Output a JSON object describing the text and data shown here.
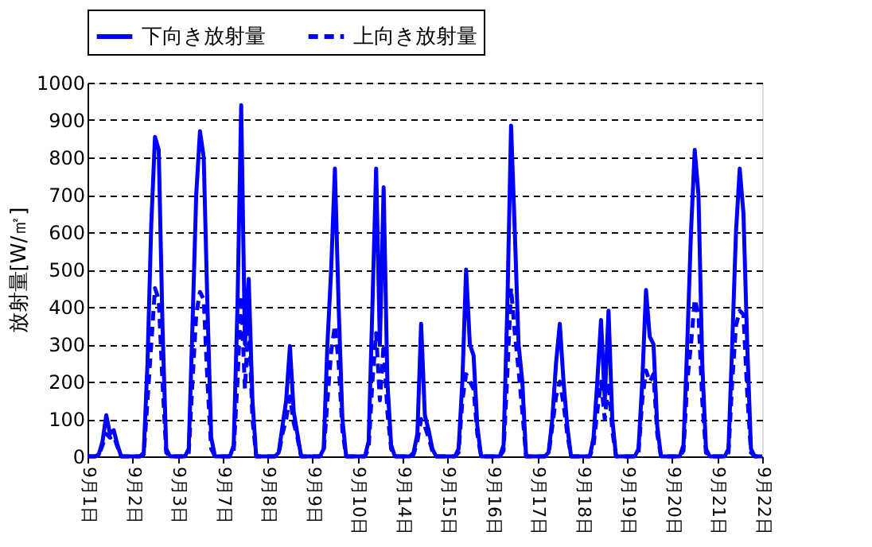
{
  "chart_data": {
    "type": "line",
    "ylabel": "放射量[W/㎡]",
    "categories": [
      "9月1日",
      null,
      null,
      null,
      null,
      null,
      null,
      null,
      null,
      null,
      null,
      null,
      "9月2日",
      null,
      null,
      null,
      null,
      null,
      null,
      null,
      null,
      null,
      null,
      null,
      "9月3日",
      null,
      null,
      null,
      null,
      null,
      null,
      null,
      null,
      null,
      null,
      null,
      "9月7日",
      null,
      null,
      null,
      null,
      null,
      null,
      null,
      null,
      null,
      null,
      null,
      "9月8日",
      null,
      null,
      null,
      null,
      null,
      null,
      null,
      null,
      null,
      null,
      null,
      "9月9日",
      null,
      null,
      null,
      null,
      null,
      null,
      null,
      null,
      null,
      null,
      null,
      "9月10日",
      null,
      null,
      null,
      null,
      null,
      null,
      null,
      null,
      null,
      null,
      null,
      "9月14日",
      null,
      null,
      null,
      null,
      null,
      null,
      null,
      null,
      null,
      null,
      null,
      "9月15日",
      null,
      null,
      null,
      null,
      null,
      null,
      null,
      null,
      null,
      null,
      null,
      "9月16日",
      null,
      null,
      null,
      null,
      null,
      null,
      null,
      null,
      null,
      null,
      null,
      "9月17日",
      null,
      null,
      null,
      null,
      null,
      null,
      null,
      null,
      null,
      null,
      null,
      "9月18日",
      null,
      null,
      null,
      null,
      null,
      null,
      null,
      null,
      null,
      null,
      null,
      "9月19日",
      null,
      null,
      null,
      null,
      null,
      null,
      null,
      null,
      null,
      null,
      null,
      "9月20日",
      null,
      null,
      null,
      null,
      null,
      null,
      null,
      null,
      null,
      null,
      null,
      "9月21日",
      null,
      null,
      null,
      null,
      null,
      null,
      null,
      null,
      null,
      null,
      null,
      "9月22日"
    ],
    "series": [
      {
        "name": "下向き放射量",
        "color": "#0000ff",
        "line_style": "solid",
        "values": [
          0,
          0,
          0,
          5,
          40,
          110,
          60,
          70,
          30,
          0,
          0,
          0,
          0,
          0,
          0,
          10,
          250,
          620,
          855,
          820,
          350,
          20,
          0,
          0,
          0,
          0,
          0,
          20,
          350,
          700,
          870,
          800,
          400,
          50,
          0,
          0,
          0,
          0,
          0,
          30,
          400,
          940,
          300,
          475,
          150,
          0,
          0,
          0,
          0,
          0,
          0,
          10,
          80,
          150,
          295,
          120,
          60,
          0,
          0,
          0,
          0,
          0,
          0,
          20,
          300,
          500,
          770,
          400,
          100,
          0,
          0,
          0,
          0,
          0,
          0,
          40,
          400,
          770,
          300,
          720,
          200,
          30,
          0,
          0,
          0,
          0,
          0,
          10,
          60,
          355,
          110,
          70,
          20,
          0,
          0,
          0,
          0,
          0,
          0,
          20,
          200,
          500,
          300,
          270,
          80,
          0,
          0,
          0,
          0,
          0,
          0,
          30,
          400,
          885,
          600,
          300,
          200,
          0,
          0,
          0,
          0,
          0,
          0,
          10,
          100,
          250,
          355,
          200,
          80,
          0,
          0,
          0,
          0,
          0,
          0,
          50,
          200,
          365,
          150,
          390,
          100,
          0,
          0,
          0,
          0,
          0,
          0,
          20,
          200,
          445,
          320,
          300,
          80,
          0,
          0,
          0,
          0,
          0,
          0,
          30,
          300,
          600,
          820,
          700,
          250,
          20,
          0,
          0,
          0,
          0,
          0,
          20,
          300,
          600,
          770,
          650,
          300,
          20,
          0,
          0,
          0
        ]
      },
      {
        "name": "上向き放射量",
        "color": "#0000ff",
        "line_style": "dashed",
        "values": [
          0,
          0,
          0,
          3,
          30,
          60,
          50,
          55,
          25,
          0,
          0,
          0,
          0,
          0,
          0,
          5,
          150,
          300,
          450,
          420,
          200,
          10,
          0,
          0,
          0,
          0,
          0,
          10,
          200,
          380,
          440,
          420,
          200,
          20,
          0,
          0,
          0,
          0,
          0,
          15,
          200,
          430,
          180,
          380,
          100,
          0,
          0,
          0,
          0,
          0,
          0,
          5,
          60,
          100,
          160,
          90,
          50,
          0,
          0,
          0,
          0,
          0,
          0,
          10,
          150,
          280,
          350,
          250,
          70,
          0,
          0,
          0,
          0,
          0,
          0,
          20,
          200,
          330,
          150,
          300,
          120,
          20,
          0,
          0,
          0,
          0,
          0,
          5,
          40,
          100,
          80,
          50,
          15,
          0,
          0,
          0,
          0,
          0,
          0,
          10,
          150,
          220,
          200,
          180,
          60,
          0,
          0,
          0,
          0,
          0,
          0,
          15,
          220,
          450,
          330,
          230,
          120,
          0,
          0,
          0,
          0,
          0,
          0,
          5,
          80,
          160,
          200,
          140,
          60,
          0,
          0,
          0,
          0,
          0,
          0,
          30,
          120,
          200,
          100,
          200,
          70,
          0,
          0,
          0,
          0,
          0,
          0,
          10,
          150,
          230,
          200,
          220,
          60,
          0,
          0,
          0,
          0,
          0,
          0,
          15,
          200,
          300,
          420,
          380,
          150,
          10,
          0,
          0,
          0,
          0,
          0,
          10,
          200,
          350,
          390,
          380,
          170,
          10,
          0,
          0,
          0
        ]
      }
    ],
    "ylim": [
      0,
      1000
    ],
    "yticks": [
      0,
      100,
      200,
      300,
      400,
      500,
      600,
      700,
      800,
      900,
      1000
    ],
    "grid": "y",
    "legend": "top"
  }
}
